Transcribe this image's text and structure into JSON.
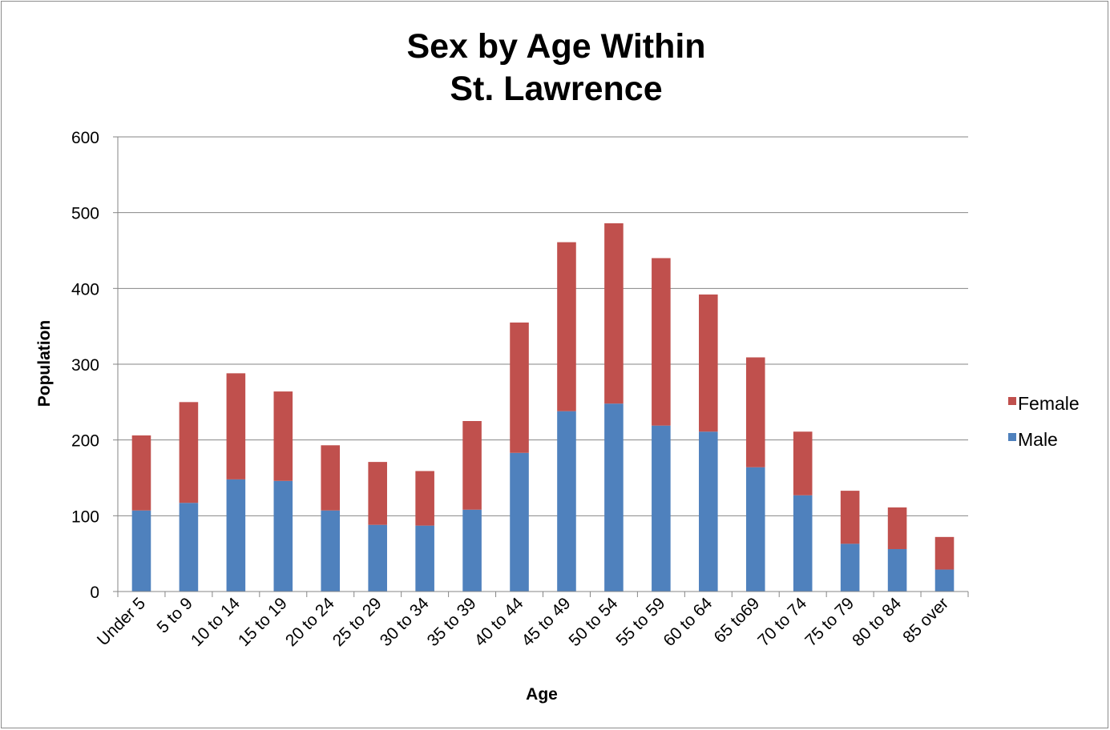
{
  "chart_data": {
    "type": "bar",
    "stacked": true,
    "title_lines": [
      "Sex by Age Within",
      "St. Lawrence"
    ],
    "xlabel": "Age",
    "ylabel": "Population",
    "ylim": [
      0,
      600
    ],
    "yticks": [
      0,
      100,
      200,
      300,
      400,
      500,
      600
    ],
    "grid": true,
    "legend_position": "right",
    "categories": [
      "Under 5",
      "5 to 9",
      "10 to 14",
      "15 to 19",
      "20 to 24",
      "25 to 29",
      "30 to 34",
      "35 to 39",
      "40 to 44",
      "45 to 49",
      "50 to 54",
      "55 to 59",
      "60 to 64",
      "65 to69",
      "70 to 74",
      "75 to 79",
      "80 to 84",
      "85 over"
    ],
    "series": [
      {
        "name": "Male",
        "color": "#4f81bd",
        "values": [
          107,
          117,
          148,
          146,
          107,
          88,
          87,
          108,
          183,
          238,
          248,
          219,
          211,
          164,
          127,
          63,
          56,
          29
        ]
      },
      {
        "name": "Female",
        "color": "#c0504d",
        "values": [
          99,
          133,
          140,
          118,
          86,
          83,
          72,
          117,
          172,
          223,
          238,
          221,
          181,
          145,
          84,
          70,
          55,
          43
        ]
      }
    ],
    "legend_order": [
      "Female",
      "Male"
    ]
  }
}
